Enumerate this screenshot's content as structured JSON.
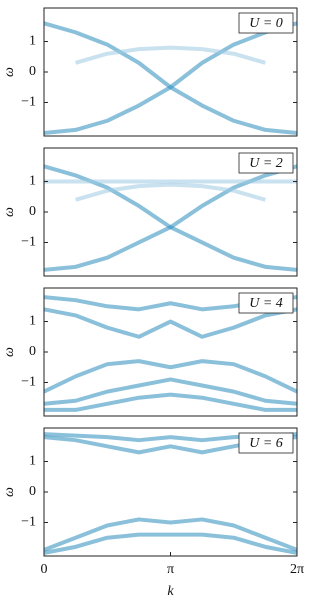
{
  "chart_data": [
    {
      "type": "line",
      "ylabel": "ω",
      "label": "U = 0",
      "xlim": [
        0,
        6.2832
      ],
      "ylim": [
        -2.1,
        2.1
      ],
      "yticks": [
        {
          "value": -1,
          "label": "−1"
        },
        0,
        1
      ],
      "x": [
        0,
        0.785,
        1.571,
        2.356,
        3.142,
        3.927,
        4.712,
        5.498,
        6.283
      ],
      "series": [
        {
          "color": "#2b8cbe",
          "values": [
            1.6,
            1.3,
            0.9,
            0.3,
            -0.5,
            -1.1,
            -1.6,
            -1.9,
            -2.0
          ]
        },
        {
          "color": "#2b8cbe",
          "values": [
            -2.0,
            -1.9,
            -1.6,
            -1.1,
            -0.5,
            0.3,
            0.9,
            1.3,
            1.6
          ]
        },
        {
          "color": "#9ecae1",
          "values": [
            null,
            0.3,
            0.6,
            0.75,
            0.8,
            0.75,
            0.6,
            0.3,
            null
          ]
        }
      ]
    },
    {
      "type": "line",
      "ylabel": "ω",
      "label": "U = 2",
      "xlim": [
        0,
        6.2832
      ],
      "ylim": [
        -2.1,
        2.1
      ],
      "yticks": [
        {
          "value": -1,
          "label": "−1"
        },
        0,
        1
      ],
      "x": [
        0,
        0.785,
        1.571,
        2.356,
        3.142,
        3.927,
        4.712,
        5.498,
        6.283
      ],
      "series": [
        {
          "color": "#2b8cbe",
          "values": [
            1.5,
            1.2,
            0.8,
            0.2,
            -0.5,
            -1.0,
            -1.5,
            -1.8,
            -1.9
          ]
        },
        {
          "color": "#2b8cbe",
          "values": [
            -1.9,
            -1.8,
            -1.5,
            -1.0,
            -0.5,
            0.2,
            0.8,
            1.2,
            1.5
          ]
        },
        {
          "color": "#9ecae1",
          "values": [
            1.0,
            1.0,
            1.0,
            1.0,
            1.0,
            1.0,
            1.0,
            1.0,
            1.0
          ]
        },
        {
          "color": "#9ecae1",
          "values": [
            null,
            0.4,
            0.7,
            0.85,
            0.9,
            0.85,
            0.7,
            0.4,
            null
          ]
        }
      ]
    },
    {
      "type": "line",
      "ylabel": "ω",
      "label": "U = 4",
      "xlim": [
        0,
        6.2832
      ],
      "ylim": [
        -2.1,
        2.1
      ],
      "yticks": [
        {
          "value": -1,
          "label": "−1"
        },
        0,
        1
      ],
      "x": [
        0,
        0.785,
        1.571,
        2.356,
        3.142,
        3.927,
        4.712,
        5.498,
        6.283
      ],
      "series": [
        {
          "color": "#2b8cbe",
          "values": [
            1.8,
            1.7,
            1.5,
            1.4,
            1.6,
            1.4,
            1.5,
            1.7,
            1.8
          ]
        },
        {
          "color": "#2b8cbe",
          "values": [
            1.4,
            1.2,
            0.8,
            0.5,
            1.0,
            0.5,
            0.8,
            1.2,
            1.4
          ]
        },
        {
          "color": "#2b8cbe",
          "values": [
            -1.3,
            -0.8,
            -0.4,
            -0.3,
            -0.5,
            -0.3,
            -0.4,
            -0.8,
            -1.3
          ]
        },
        {
          "color": "#2b8cbe",
          "values": [
            -1.7,
            -1.6,
            -1.3,
            -1.1,
            -0.9,
            -1.1,
            -1.3,
            -1.6,
            -1.7
          ]
        },
        {
          "color": "#2b8cbe",
          "values": [
            -1.9,
            -1.9,
            -1.7,
            -1.5,
            -1.4,
            -1.5,
            -1.7,
            -1.9,
            -1.9
          ]
        }
      ]
    },
    {
      "type": "line",
      "ylabel": "ω",
      "label": "U = 6",
      "xlabel": "k",
      "xlim": [
        0,
        6.2832
      ],
      "ylim": [
        -2.1,
        2.1
      ],
      "yticks": [
        {
          "value": -1,
          "label": "−1"
        },
        0,
        1
      ],
      "xticks": [
        {
          "value": 0,
          "label": "0"
        },
        {
          "value": 3.1416,
          "label": "π"
        },
        {
          "value": 6.2832,
          "label": "2π"
        }
      ],
      "x": [
        0,
        0.785,
        1.571,
        2.356,
        3.142,
        3.927,
        4.712,
        5.498,
        6.283
      ],
      "series": [
        {
          "color": "#2b8cbe",
          "values": [
            1.9,
            1.85,
            1.8,
            1.7,
            1.8,
            1.7,
            1.8,
            1.85,
            1.9
          ]
        },
        {
          "color": "#2b8cbe",
          "values": [
            1.8,
            1.7,
            1.5,
            1.3,
            1.5,
            1.3,
            1.5,
            1.7,
            1.8
          ]
        },
        {
          "color": "#2b8cbe",
          "values": [
            -1.9,
            -1.5,
            -1.1,
            -0.9,
            -1.0,
            -0.9,
            -1.1,
            -1.5,
            -1.9
          ]
        },
        {
          "color": "#2b8cbe",
          "values": [
            -2.0,
            -1.8,
            -1.5,
            -1.4,
            -1.4,
            -1.4,
            -1.5,
            -1.8,
            -2.0
          ]
        }
      ]
    }
  ]
}
